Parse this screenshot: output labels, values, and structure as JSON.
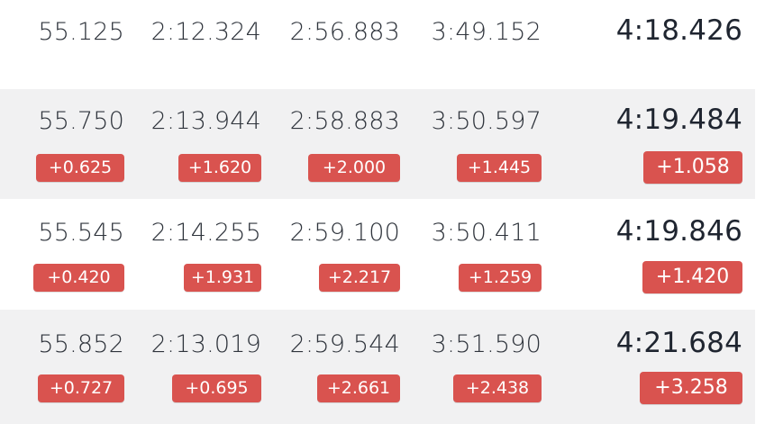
{
  "accent_color": "#d9534f",
  "rows": [
    {
      "splits": [
        {
          "time": "55.125"
        },
        {
          "time": "2:12.324"
        },
        {
          "time": "2:56.883"
        },
        {
          "time": "3:49.152"
        }
      ],
      "total": {
        "time": "4:18.426"
      }
    },
    {
      "splits": [
        {
          "time": "55.750",
          "delta": "+0.625"
        },
        {
          "time": "2:13.944",
          "delta": "+1.620"
        },
        {
          "time": "2:58.883",
          "delta": "+2.000"
        },
        {
          "time": "3:50.597",
          "delta": "+1.445"
        }
      ],
      "total": {
        "time": "4:19.484",
        "delta": "+1.058"
      }
    },
    {
      "splits": [
        {
          "time": "55.545",
          "delta": "+0.420"
        },
        {
          "time": "2:14.255",
          "delta": "+1.931"
        },
        {
          "time": "2:59.100",
          "delta": "+2.217"
        },
        {
          "time": "3:50.411",
          "delta": "+1.259"
        }
      ],
      "total": {
        "time": "4:19.846",
        "delta": "+1.420"
      }
    },
    {
      "splits": [
        {
          "time": "55.852",
          "delta": "+0.727"
        },
        {
          "time": "2:13.019",
          "delta": "+0.695"
        },
        {
          "time": "2:59.544",
          "delta": "+2.661"
        },
        {
          "time": "3:51.590",
          "delta": "+2.438"
        }
      ],
      "total": {
        "time": "4:21.684",
        "delta": "+3.258"
      }
    }
  ]
}
